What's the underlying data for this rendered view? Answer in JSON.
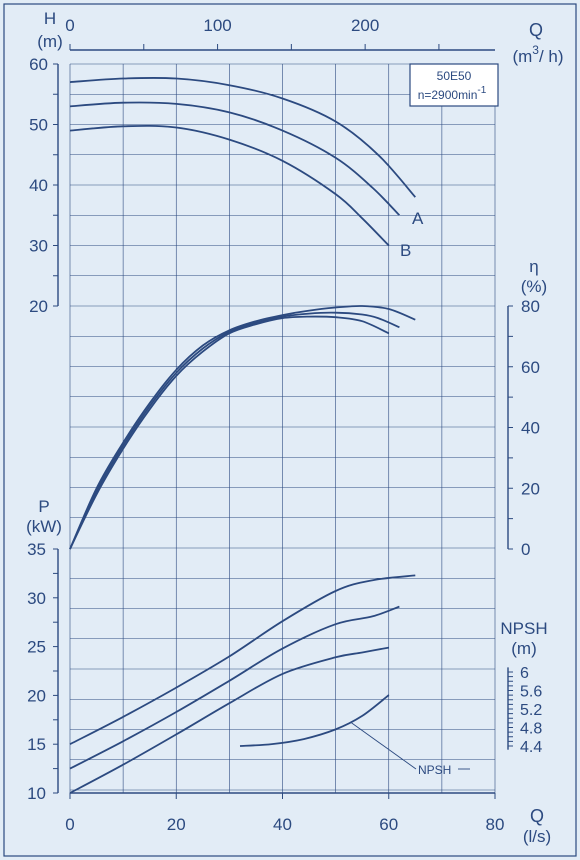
{
  "colors": {
    "background": "#e2ecf6",
    "line": "#2c4a80",
    "grid": "#2c4a80"
  },
  "chart_data": {
    "type": "line",
    "title": "",
    "model_box": {
      "model": "50E50",
      "speed": "n=2900min",
      "speed_exp": "-1"
    },
    "x_axis": {
      "label": "Q",
      "unit": "(l/s)",
      "ticks": [
        "0",
        "20",
        "40",
        "60",
        "80"
      ],
      "range": [
        0,
        80
      ]
    },
    "x_axis_top": {
      "label": "Q",
      "unit": "(m",
      "unit_sup": "3",
      "unit_tail": "/ h)",
      "ticks": [
        "0",
        "100",
        "200"
      ],
      "range": [
        0,
        288
      ]
    },
    "head_axis": {
      "label": "H",
      "unit": "(m)",
      "ticks": [
        "60",
        "50",
        "40",
        "30",
        "20"
      ],
      "range": [
        20,
        60
      ]
    },
    "eff_axis": {
      "label": "η",
      "unit": "(%)",
      "ticks": [
        "80",
        "60",
        "40",
        "20",
        "0"
      ],
      "range": [
        0,
        80
      ]
    },
    "power_axis": {
      "label": "P",
      "unit": "(kW)",
      "ticks": [
        "35",
        "30",
        "25",
        "20",
        "15",
        "10"
      ],
      "range": [
        10,
        35
      ]
    },
    "npsh_axis": {
      "label": "NPSH",
      "unit": "(m)",
      "ticks": [
        "6",
        "5.6",
        "5.2",
        "4.8",
        "4.4"
      ],
      "range": [
        4.3,
        6.1
      ]
    },
    "curve_labels": {
      "a": "A",
      "b": "B",
      "npsh": "NPSH"
    },
    "head_series": [
      {
        "name": "A",
        "points": [
          [
            0,
            57
          ],
          [
            10,
            57.6
          ],
          [
            20,
            57.6
          ],
          [
            30,
            56.5
          ],
          [
            40,
            54.3
          ],
          [
            50,
            50.5
          ],
          [
            58,
            45
          ],
          [
            65,
            38
          ]
        ]
      },
      {
        "name": "",
        "points": [
          [
            0,
            53
          ],
          [
            10,
            53.6
          ],
          [
            20,
            53.4
          ],
          [
            30,
            52
          ],
          [
            40,
            49
          ],
          [
            50,
            44.5
          ],
          [
            57,
            39.5
          ],
          [
            62,
            35
          ]
        ]
      },
      {
        "name": "B",
        "points": [
          [
            0,
            49
          ],
          [
            10,
            49.7
          ],
          [
            20,
            49.5
          ],
          [
            30,
            47.5
          ],
          [
            40,
            44
          ],
          [
            50,
            38.5
          ],
          [
            55,
            34.5
          ],
          [
            60,
            30
          ]
        ]
      }
    ],
    "eff_series": [
      {
        "name": "",
        "points": [
          [
            0,
            0
          ],
          [
            5,
            20
          ],
          [
            10,
            35
          ],
          [
            15,
            48
          ],
          [
            20,
            59
          ],
          [
            25,
            67
          ],
          [
            30,
            72
          ],
          [
            35,
            75
          ],
          [
            40,
            77
          ],
          [
            45,
            78.5
          ],
          [
            50,
            79.5
          ],
          [
            55,
            80
          ],
          [
            60,
            79
          ],
          [
            65,
            75.5
          ]
        ]
      },
      {
        "name": "",
        "points": [
          [
            0,
            0
          ],
          [
            5,
            19
          ],
          [
            10,
            34
          ],
          [
            15,
            47
          ],
          [
            20,
            58
          ],
          [
            25,
            66
          ],
          [
            30,
            71.5
          ],
          [
            35,
            74.5
          ],
          [
            40,
            76.5
          ],
          [
            45,
            77.5
          ],
          [
            50,
            77.8
          ],
          [
            55,
            77.2
          ],
          [
            58,
            76
          ],
          [
            62,
            73
          ]
        ]
      },
      {
        "name": "",
        "points": [
          [
            0,
            0
          ],
          [
            5,
            18
          ],
          [
            10,
            33
          ],
          [
            15,
            46
          ],
          [
            20,
            57
          ],
          [
            25,
            65
          ],
          [
            30,
            71
          ],
          [
            35,
            74
          ],
          [
            40,
            76
          ],
          [
            45,
            76.5
          ],
          [
            50,
            76.3
          ],
          [
            55,
            75
          ],
          [
            60,
            71
          ]
        ]
      }
    ],
    "power_series": [
      {
        "name": "",
        "points": [
          [
            0,
            15
          ],
          [
            10,
            17.8
          ],
          [
            20,
            20.8
          ],
          [
            30,
            24
          ],
          [
            40,
            27.6
          ],
          [
            50,
            30.7
          ],
          [
            57,
            31.8
          ],
          [
            65,
            32.3
          ]
        ]
      },
      {
        "name": "",
        "points": [
          [
            0,
            12.5
          ],
          [
            10,
            15.3
          ],
          [
            20,
            18.3
          ],
          [
            30,
            21.5
          ],
          [
            40,
            24.8
          ],
          [
            50,
            27.3
          ],
          [
            57,
            28.1
          ],
          [
            62,
            29.1
          ]
        ]
      },
      {
        "name": "",
        "points": [
          [
            0,
            10
          ],
          [
            10,
            12.9
          ],
          [
            20,
            16
          ],
          [
            30,
            19.2
          ],
          [
            40,
            22.2
          ],
          [
            50,
            23.9
          ],
          [
            55,
            24.4
          ],
          [
            60,
            24.9
          ]
        ]
      }
    ],
    "npsh_series": [
      {
        "name": "NPSH",
        "points": [
          [
            32,
            4.4
          ],
          [
            38,
            4.44
          ],
          [
            44,
            4.55
          ],
          [
            50,
            4.76
          ],
          [
            55,
            5.05
          ],
          [
            60,
            5.5
          ]
        ]
      }
    ]
  }
}
